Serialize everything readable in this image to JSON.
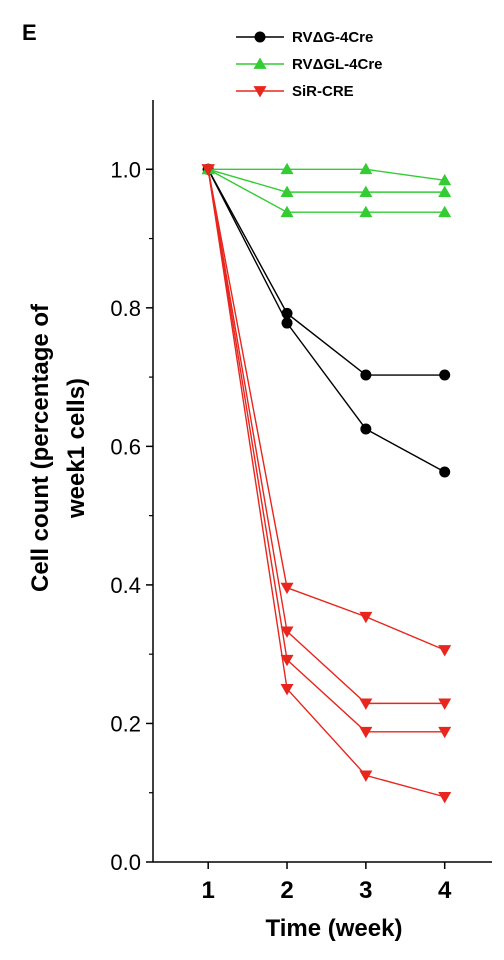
{
  "panel_label": "E",
  "chart_data": {
    "type": "line",
    "title": "",
    "xlabel": "Time (week)",
    "ylabel": [
      "Cell count (percentage of",
      "week1 cells)"
    ],
    "x": [
      1,
      2,
      3,
      4
    ],
    "xlim": [
      0.3,
      4.6
    ],
    "ylim": [
      0,
      1.1
    ],
    "xticks": [
      "1",
      "2",
      "3",
      "4"
    ],
    "yticks": [
      "0.0",
      "0.2",
      "0.4",
      "0.6",
      "0.8",
      "1.0"
    ],
    "grid": false,
    "legend_position": "top-center",
    "legend": [
      {
        "name": "RVΔG-4Cre",
        "color": "#000000",
        "marker": "circle"
      },
      {
        "name": "RVΔGL-4Cre",
        "color": "#33cc33",
        "marker": "triangle-up"
      },
      {
        "name": "SiR-CRE",
        "color": "#e8261e",
        "marker": "triangle-down"
      }
    ],
    "groups": [
      {
        "name": "RVΔG-4Cre",
        "color": "#000000",
        "marker": "circle",
        "series": [
          {
            "values": [
              1.0,
              0.792,
              0.703,
              0.703
            ]
          },
          {
            "values": [
              1.0,
              0.778,
              0.625,
              0.563
            ]
          }
        ]
      },
      {
        "name": "RVΔGL-4Cre",
        "color": "#33cc33",
        "marker": "triangle-up",
        "series": [
          {
            "values": [
              1.0,
              1.0,
              1.0,
              0.984
            ]
          },
          {
            "values": [
              1.0,
              0.967,
              0.967,
              0.967
            ]
          },
          {
            "values": [
              1.0,
              0.938,
              0.938,
              0.938
            ]
          }
        ]
      },
      {
        "name": "SiR-CRE",
        "color": "#e8261e",
        "marker": "triangle-down",
        "series": [
          {
            "values": [
              1.0,
              0.396,
              0.354,
              0.306
            ]
          },
          {
            "values": [
              1.0,
              0.333,
              0.229,
              0.229
            ]
          },
          {
            "values": [
              1.0,
              0.292,
              0.188,
              0.188
            ]
          },
          {
            "values": [
              1.0,
              0.25,
              0.125,
              0.094
            ]
          }
        ]
      }
    ]
  }
}
